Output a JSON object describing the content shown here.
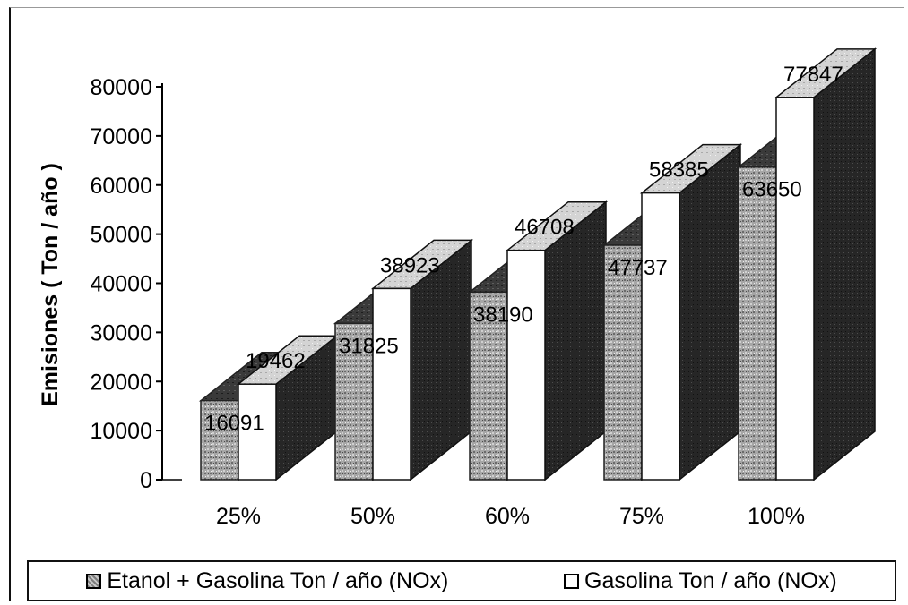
{
  "chart_data": {
    "type": "bar",
    "categories": [
      "25%",
      "50%",
      "60%",
      "75%",
      "100%"
    ],
    "series": [
      {
        "name": "Etanol + Gasolina Ton / año (NOx)",
        "values": [
          16091,
          31825,
          38190,
          47737,
          63650
        ]
      },
      {
        "name": "Gasolina Ton / año (NOx)",
        "values": [
          19462,
          38923,
          46708,
          58385,
          77847
        ]
      }
    ],
    "data_labels": [
      [
        "16091",
        "31825",
        "38190",
        "47737",
        "63650"
      ],
      [
        "19462",
        "38923",
        "46708",
        "58385",
        "77847"
      ]
    ],
    "ylabel": "Emisiones ( Ton / año )",
    "xlabel": "",
    "ylim": [
      0,
      80000
    ],
    "yticks": [
      0,
      10000,
      20000,
      30000,
      40000,
      50000,
      60000,
      70000,
      80000
    ],
    "ytick_labels": [
      "0",
      "10000",
      "20000",
      "30000",
      "40000",
      "50000",
      "60000",
      "70000",
      "80000"
    ],
    "style": "3d-clustered",
    "grid": false,
    "legend_position": "bottom",
    "colors": {
      "etanol_front": "#9a9a9a",
      "etanol_dark": "#3a3a3a",
      "gasolina_front": "#ffffff",
      "gasolina_side": "#2a2a2a",
      "gasolina_top": "#d9d9d9"
    }
  },
  "legend": {
    "items": [
      {
        "label": "Etanol + Gasolina Ton / año (NOx)",
        "swatch": "textured"
      },
      {
        "label": "Gasolina Ton / año (NOx)",
        "swatch": "plain"
      }
    ]
  }
}
